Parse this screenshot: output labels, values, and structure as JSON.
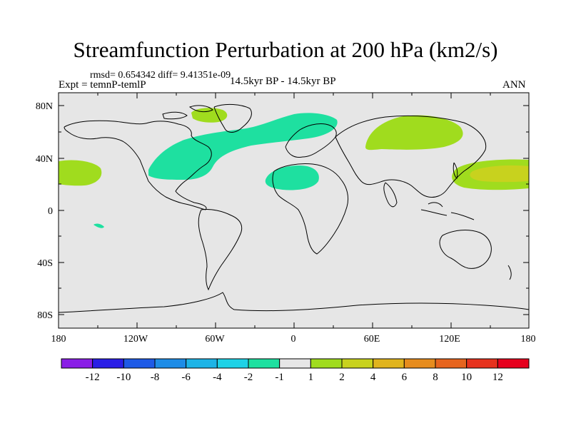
{
  "title": "Streamfunction Perturbation at 200 hPa (km2/s)",
  "stats": "rmsd= 0.654342 diff= 9.41351e-09",
  "experiment": "Expt = temnP-temlP",
  "period": "14.5kyr BP - 14.5kyr BP",
  "season": "ANN",
  "lat_ticks": [
    "80N",
    "40N",
    "0",
    "40S",
    "80S"
  ],
  "lon_ticks": [
    "180",
    "120W",
    "60W",
    "0",
    "60E",
    "120E",
    "180"
  ],
  "colorbar": {
    "labels": [
      "-12",
      "-10",
      "-8",
      "-6",
      "-4",
      "-2",
      "-1",
      "1",
      "2",
      "4",
      "6",
      "8",
      "10",
      "12"
    ],
    "colors": [
      "#8a1ee6",
      "#2a1ee6",
      "#1e5ae6",
      "#1e8ce6",
      "#1eb4e6",
      "#1ed2e6",
      "#1ee0a0",
      "#e6e6e6",
      "#a0dc1e",
      "#c8d21e",
      "#e0b41e",
      "#e68c1e",
      "#e6641e",
      "#e6321e",
      "#e6001e"
    ]
  },
  "colors": {
    "background": "#e6e6e6",
    "positive_low": "#a0dc1e",
    "positive_mid": "#c8d21e",
    "negative_low": "#1ee0a0"
  }
}
